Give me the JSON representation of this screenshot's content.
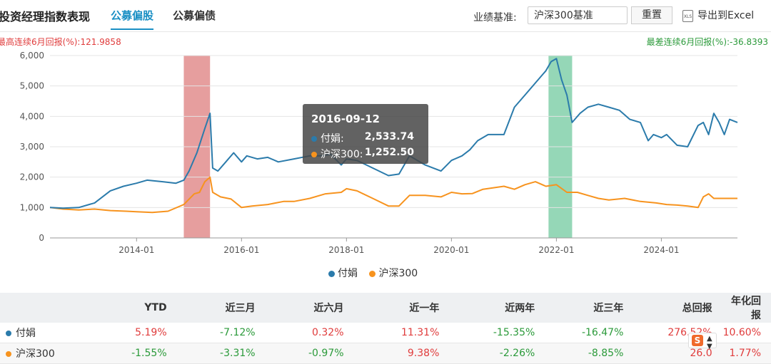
{
  "header": {
    "title": "投资经理指数表现",
    "tabs": [
      {
        "label": "公募偏股",
        "active": true
      },
      {
        "label": "公募偏债",
        "active": false
      }
    ],
    "benchmark_label": "业绩基准:",
    "benchmark_value": "沪深300基准",
    "reset_label": "重置",
    "export_icon": "XLS",
    "export_label": "导出到Excel"
  },
  "stats": {
    "max_label": "最高连续6月回报(%):121.9858",
    "min_label": "最差连续6月回报(%):-36.8393"
  },
  "tooltip": {
    "date": "2016-09-12",
    "rows": [
      {
        "name": "付娟:",
        "value": "2,533.74",
        "color": "#2b7bab"
      },
      {
        "name": "沪深300:",
        "value": "1,252.50",
        "color": "#f7931e"
      }
    ]
  },
  "chart_data": {
    "type": "line",
    "ylim": [
      0,
      6000
    ],
    "yticks": [
      0,
      1000,
      2000,
      3000,
      4000,
      5000,
      6000
    ],
    "ytick_labels": [
      "0",
      "1,000",
      "2,000",
      "3,000",
      "4,000",
      "5,000",
      "6,000"
    ],
    "xlim": [
      2012.35,
      2025.45
    ],
    "xticks": [
      2014.0,
      2016.0,
      2018.0,
      2020.0,
      2022.0,
      2024.0
    ],
    "xtick_labels": [
      "2014-01",
      "2016-01",
      "2018-01",
      "2020-01",
      "2022-01",
      "2024-01"
    ],
    "highlights": [
      {
        "start": 2014.9,
        "end": 2015.4,
        "color": "#d86a6a"
      },
      {
        "start": 2021.85,
        "end": 2022.3,
        "color": "#5cc190"
      }
    ],
    "series": [
      {
        "name": "付娟",
        "color": "#2b7bab",
        "x": [
          2012.35,
          2012.6,
          2012.9,
          2013.2,
          2013.5,
          2013.75,
          2014.0,
          2014.2,
          2014.5,
          2014.75,
          2014.9,
          2015.0,
          2015.15,
          2015.3,
          2015.4,
          2015.45,
          2015.55,
          2015.7,
          2015.85,
          2016.0,
          2016.1,
          2016.3,
          2016.5,
          2016.7,
          2017.0,
          2017.3,
          2017.5,
          2017.7,
          2017.9,
          2018.0,
          2018.2,
          2018.5,
          2018.8,
          2019.0,
          2019.2,
          2019.5,
          2019.8,
          2020.0,
          2020.2,
          2020.35,
          2020.5,
          2020.7,
          2020.9,
          2021.0,
          2021.2,
          2021.4,
          2021.6,
          2021.8,
          2021.9,
          2022.0,
          2022.1,
          2022.2,
          2022.3,
          2022.45,
          2022.6,
          2022.8,
          2023.0,
          2023.2,
          2023.4,
          2023.6,
          2023.75,
          2023.85,
          2024.0,
          2024.1,
          2024.3,
          2024.5,
          2024.7,
          2024.8,
          2024.9,
          2025.0,
          2025.1,
          2025.2,
          2025.3,
          2025.45
        ],
        "values": [
          1000,
          980,
          1000,
          1150,
          1550,
          1700,
          1800,
          1900,
          1850,
          1800,
          1900,
          2200,
          2800,
          3600,
          4100,
          2300,
          2200,
          2500,
          2800,
          2500,
          2700,
          2600,
          2650,
          2500,
          2600,
          2700,
          2700,
          2750,
          2400,
          2600,
          2550,
          2300,
          2050,
          2100,
          2700,
          2400,
          2200,
          2550,
          2700,
          2900,
          3200,
          3400,
          3400,
          3400,
          4300,
          4700,
          5100,
          5500,
          5800,
          5900,
          5200,
          4700,
          3800,
          4100,
          4300,
          4400,
          4300,
          4200,
          3900,
          3800,
          3200,
          3400,
          3300,
          3400,
          3050,
          3000,
          3700,
          3800,
          3400,
          4100,
          3800,
          3400,
          3900,
          3800
        ]
      },
      {
        "name": "沪深300",
        "color": "#f7931e",
        "x": [
          2012.35,
          2012.6,
          2012.9,
          2013.2,
          2013.5,
          2013.8,
          2014.0,
          2014.3,
          2014.6,
          2014.9,
          2015.1,
          2015.2,
          2015.3,
          2015.4,
          2015.45,
          2015.6,
          2015.8,
          2016.0,
          2016.2,
          2016.5,
          2016.8,
          2017.0,
          2017.3,
          2017.6,
          2017.9,
          2018.0,
          2018.2,
          2018.5,
          2018.8,
          2019.0,
          2019.2,
          2019.5,
          2019.8,
          2020.0,
          2020.2,
          2020.4,
          2020.6,
          2020.8,
          2021.0,
          2021.2,
          2021.4,
          2021.6,
          2021.8,
          2022.0,
          2022.2,
          2022.4,
          2022.6,
          2022.8,
          2023.0,
          2023.3,
          2023.6,
          2023.9,
          2024.1,
          2024.3,
          2024.5,
          2024.7,
          2024.8,
          2024.9,
          2025.0,
          2025.2,
          2025.45
        ],
        "values": [
          1000,
          950,
          920,
          950,
          900,
          880,
          860,
          840,
          880,
          1100,
          1450,
          1500,
          1850,
          2000,
          1500,
          1350,
          1280,
          1000,
          1050,
          1100,
          1200,
          1200,
          1300,
          1450,
          1500,
          1620,
          1550,
          1300,
          1050,
          1050,
          1400,
          1400,
          1350,
          1500,
          1450,
          1460,
          1600,
          1650,
          1700,
          1600,
          1750,
          1850,
          1700,
          1750,
          1500,
          1500,
          1400,
          1300,
          1250,
          1300,
          1200,
          1150,
          1100,
          1080,
          1050,
          1000,
          1350,
          1450,
          1300,
          1300,
          1300
        ]
      }
    ]
  },
  "table": {
    "headers": [
      "",
      "YTD",
      "近三月",
      "近六月",
      "近一年",
      "近两年",
      "近三年",
      "总回报",
      "年化回报"
    ],
    "rows": [
      {
        "name": "付娟",
        "color": "#2b7bab",
        "values": [
          "5.19%",
          "-7.12%",
          "0.32%",
          "11.31%",
          "-15.35%",
          "-16.47%",
          "276.52%",
          "10.60%"
        ]
      },
      {
        "name": "沪深300",
        "color": "#f7931e",
        "values": [
          "-1.55%",
          "-3.31%",
          "-0.97%",
          "9.38%",
          "-2.26%",
          "-8.85%",
          "26.0",
          "1.77%"
        ]
      }
    ]
  }
}
